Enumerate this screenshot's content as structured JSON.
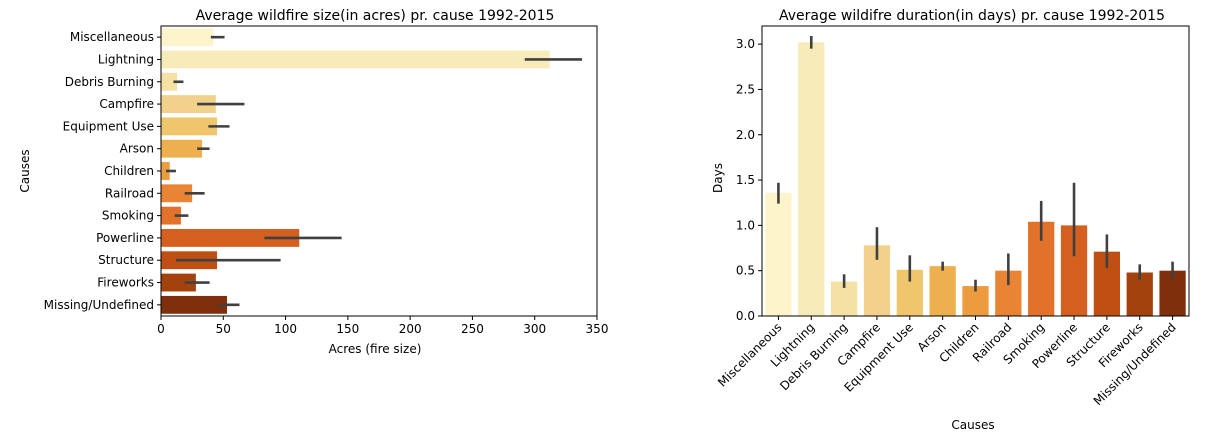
{
  "chart_data": [
    {
      "type": "bar",
      "orientation": "horizontal",
      "title": "Average wildfire size(in acres) pr. cause 1992-2015",
      "xlabel": "Acres (fire size)",
      "ylabel": "Causes",
      "xlim": [
        0,
        350
      ],
      "xticks": [
        0,
        50,
        100,
        150,
        200,
        250,
        300,
        350
      ],
      "grid": false,
      "categories": [
        "Miscellaneous",
        "Lightning",
        "Debris Burning",
        "Campfire",
        "Equipment Use",
        "Arson",
        "Children",
        "Railroad",
        "Smoking",
        "Powerline",
        "Structure",
        "Fireworks",
        "Missing/Undefined"
      ],
      "values": [
        42,
        312,
        13,
        44,
        45,
        33,
        7,
        25,
        16,
        111,
        45,
        28,
        53
      ],
      "error_low": [
        40,
        292,
        10,
        29,
        38,
        29,
        4,
        19,
        11,
        83,
        12,
        19,
        46
      ],
      "error_high": [
        51,
        338,
        18,
        67,
        55,
        39,
        12,
        35,
        22,
        145,
        96,
        39,
        63
      ],
      "colors": [
        "#fdf4cb",
        "#f8ebba",
        "#f6e1a4",
        "#f2d28b",
        "#f0c66d",
        "#eeb04f",
        "#ec9b3f",
        "#e88433",
        "#e2722b",
        "#d45f1f",
        "#c04f14",
        "#a4420e",
        "#7f300a"
      ]
    },
    {
      "type": "bar",
      "orientation": "vertical",
      "title": "Average wildifre duration(in days) pr. cause 1992-2015",
      "xlabel": "Causes",
      "ylabel": "Days",
      "ylim": [
        0,
        3.2
      ],
      "yticks": [
        "0.0",
        "0.5",
        "1.0",
        "1.5",
        "2.0",
        "2.5",
        "3.0"
      ],
      "grid": false,
      "categories": [
        "Miscellaneous",
        "Lightning",
        "Debris Burning",
        "Campfire",
        "Equipment Use",
        "Arson",
        "Children",
        "Railroad",
        "Smoking",
        "Powerline",
        "Structure",
        "Fireworks",
        "Missing/Undefined"
      ],
      "values": [
        1.36,
        3.02,
        0.38,
        0.78,
        0.51,
        0.55,
        0.33,
        0.5,
        1.04,
        1.0,
        0.71,
        0.48,
        0.5
      ],
      "error_low": [
        1.24,
        2.95,
        0.31,
        0.62,
        0.38,
        0.5,
        0.27,
        0.34,
        0.83,
        0.66,
        0.53,
        0.4,
        0.41
      ],
      "error_high": [
        1.47,
        3.09,
        0.46,
        0.98,
        0.67,
        0.6,
        0.4,
        0.69,
        1.27,
        1.47,
        0.9,
        0.57,
        0.6
      ],
      "colors": [
        "#fdf4cb",
        "#f8ebba",
        "#f6e1a4",
        "#f2d28b",
        "#f0c66d",
        "#eeb04f",
        "#ec9b3f",
        "#e88433",
        "#e2722b",
        "#d45f1f",
        "#c04f14",
        "#a4420e",
        "#7f300a"
      ]
    }
  ]
}
